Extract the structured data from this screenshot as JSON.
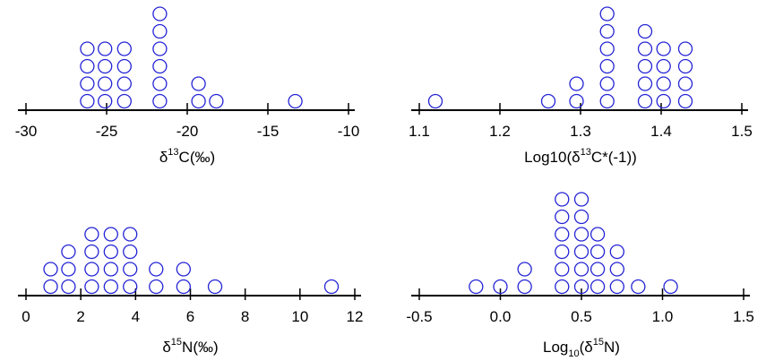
{
  "chart_data": [
    {
      "type": "scatter",
      "subtype": "dot-plot",
      "dot_color": "#2323d6",
      "xlabel": {
        "main": "δ",
        "sup": "13",
        "tail": "C(‰)"
      },
      "xlim": [
        -30,
        -10
      ],
      "ticks": [
        -30,
        -25,
        -20,
        -15,
        -10
      ],
      "tick_labels": [
        "-30",
        "-25",
        "-20",
        "-15",
        "-10"
      ],
      "points": [
        {
          "x": -26.2,
          "count": 4
        },
        {
          "x": -25.1,
          "count": 4
        },
        {
          "x": -23.9,
          "count": 4
        },
        {
          "x": -21.7,
          "count": 6
        },
        {
          "x": -19.3,
          "count": 2
        },
        {
          "x": -18.2,
          "count": 1
        },
        {
          "x": -13.3,
          "count": 1
        }
      ]
    },
    {
      "type": "scatter",
      "subtype": "dot-plot",
      "dot_color": "#2323d6",
      "xlabel": {
        "main": "Log10(δ",
        "sup": "13",
        "tail": "C*(-1))"
      },
      "xlim": [
        1.1,
        1.5
      ],
      "ticks": [
        1.1,
        1.2,
        1.3,
        1.4,
        1.5
      ],
      "tick_labels": [
        "1.1",
        "1.2",
        "1.3",
        "1.4",
        "1.5"
      ],
      "points": [
        {
          "x": 1.12,
          "count": 1
        },
        {
          "x": 1.26,
          "count": 1
        },
        {
          "x": 1.295,
          "count": 2
        },
        {
          "x": 1.333,
          "count": 6
        },
        {
          "x": 1.38,
          "count": 5
        },
        {
          "x": 1.403,
          "count": 4
        },
        {
          "x": 1.43,
          "count": 4
        }
      ]
    },
    {
      "type": "scatter",
      "subtype": "dot-plot",
      "dot_color": "#2323d6",
      "xlabel": {
        "main": "δ",
        "sup": "15",
        "tail": "N(‰)"
      },
      "xlim": [
        0,
        12
      ],
      "ticks": [
        0,
        2,
        4,
        6,
        8,
        10,
        12
      ],
      "tick_labels": [
        "0",
        "2",
        "4",
        "6",
        "8",
        "10",
        "12"
      ],
      "points": [
        {
          "x": 0.9,
          "count": 2
        },
        {
          "x": 1.55,
          "count": 3
        },
        {
          "x": 2.4,
          "count": 4
        },
        {
          "x": 3.1,
          "count": 4
        },
        {
          "x": 3.8,
          "count": 4
        },
        {
          "x": 4.75,
          "count": 2
        },
        {
          "x": 5.75,
          "count": 2
        },
        {
          "x": 6.9,
          "count": 1
        },
        {
          "x": 11.15,
          "count": 1
        }
      ]
    },
    {
      "type": "scatter",
      "subtype": "dot-plot",
      "dot_color": "#2323d6",
      "xlabel": {
        "main": "Log",
        "sub": "10",
        "main2": "(δ",
        "sup": "15",
        "tail": "N)"
      },
      "xlim": [
        -0.5,
        1.5
      ],
      "ticks": [
        -0.5,
        0.0,
        0.5,
        1.0,
        1.5
      ],
      "tick_labels": [
        "-0.5",
        "0.0",
        "0.5",
        "1.0",
        "1.5"
      ],
      "points": [
        {
          "x": -0.15,
          "count": 1
        },
        {
          "x": 0.0,
          "count": 1
        },
        {
          "x": 0.15,
          "count": 2
        },
        {
          "x": 0.38,
          "count": 6
        },
        {
          "x": 0.5,
          "count": 6
        },
        {
          "x": 0.6,
          "count": 4
        },
        {
          "x": 0.72,
          "count": 3
        },
        {
          "x": 0.85,
          "count": 1
        },
        {
          "x": 1.05,
          "count": 1
        }
      ]
    }
  ]
}
